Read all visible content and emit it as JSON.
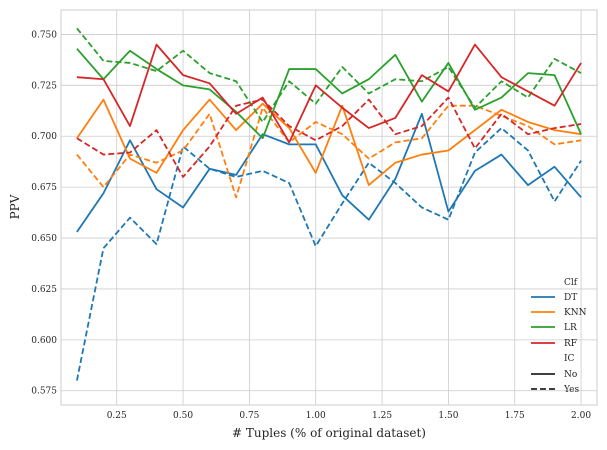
{
  "chart_data": {
    "type": "line",
    "xlabel": "# Tuples (% of original dataset)",
    "ylabel": "PPV",
    "xlim": [
      0.04,
      2.06
    ],
    "ylim": [
      0.568,
      0.762
    ],
    "xticks": [
      0.25,
      0.5,
      0.75,
      1.0,
      1.25,
      1.5,
      1.75,
      2.0
    ],
    "xtick_labels": [
      "0.25",
      "0.50",
      "0.75",
      "1.00",
      "1.25",
      "1.50",
      "1.75",
      "2.00"
    ],
    "yticks": [
      0.575,
      0.6,
      0.625,
      0.65,
      0.675,
      0.7,
      0.725,
      0.75
    ],
    "ytick_labels": [
      "0.575",
      "0.600",
      "0.625",
      "0.650",
      "0.675",
      "0.700",
      "0.725",
      "0.750"
    ],
    "grid": true,
    "legend_placement": "bottom-right",
    "legend": {
      "clf_title": "Clf",
      "clf_entries": [
        {
          "name": "DT",
          "color": "#1f77b4"
        },
        {
          "name": "KNN",
          "color": "#ff7f0e"
        },
        {
          "name": "LR",
          "color": "#2ca02c"
        },
        {
          "name": "RF",
          "color": "#d62728"
        }
      ],
      "ic_title": "IC",
      "ic_entries": [
        {
          "name": "No",
          "style": "solid"
        },
        {
          "name": "Yes",
          "style": "dashed"
        }
      ]
    },
    "x": [
      0.1,
      0.2,
      0.3,
      0.4,
      0.5,
      0.6,
      0.7,
      0.8,
      0.9,
      1.0,
      1.1,
      1.2,
      1.3,
      1.4,
      1.5,
      1.6,
      1.7,
      1.8,
      1.9,
      2.0
    ],
    "series": [
      {
        "clf": "DT",
        "ic": "No",
        "color": "#1f77b4",
        "dash": false,
        "values": [
          0.653,
          0.672,
          0.698,
          0.674,
          0.665,
          0.684,
          0.681,
          0.701,
          0.696,
          0.696,
          0.671,
          0.659,
          0.679,
          0.711,
          0.663,
          0.683,
          0.691,
          0.676,
          0.685,
          0.67
        ]
      },
      {
        "clf": "DT",
        "ic": "Yes",
        "color": "#1f77b4",
        "dash": true,
        "values": [
          0.58,
          0.645,
          0.66,
          0.647,
          0.695,
          0.684,
          0.68,
          0.683,
          0.677,
          0.646,
          0.667,
          0.687,
          0.677,
          0.665,
          0.659,
          0.692,
          0.704,
          0.693,
          0.668,
          0.688
        ]
      },
      {
        "clf": "KNN",
        "ic": "No",
        "color": "#ff7f0e",
        "dash": false,
        "values": [
          0.699,
          0.718,
          0.689,
          0.682,
          0.703,
          0.718,
          0.703,
          0.716,
          0.704,
          0.682,
          0.715,
          0.676,
          0.687,
          0.691,
          0.693,
          0.703,
          0.713,
          0.707,
          0.703,
          0.701
        ]
      },
      {
        "clf": "KNN",
        "ic": "Yes",
        "color": "#ff7f0e",
        "dash": true,
        "values": [
          0.691,
          0.675,
          0.691,
          0.687,
          0.693,
          0.711,
          0.67,
          0.714,
          0.697,
          0.707,
          0.701,
          0.689,
          0.697,
          0.699,
          0.715,
          0.715,
          0.71,
          0.705,
          0.696,
          0.698
        ]
      },
      {
        "clf": "LR",
        "ic": "No",
        "color": "#2ca02c",
        "dash": false,
        "values": [
          0.743,
          0.728,
          0.742,
          0.733,
          0.725,
          0.723,
          0.712,
          0.699,
          0.733,
          0.733,
          0.721,
          0.728,
          0.74,
          0.717,
          0.736,
          0.713,
          0.719,
          0.731,
          0.73,
          0.701
        ]
      },
      {
        "clf": "LR",
        "ic": "Yes",
        "color": "#2ca02c",
        "dash": true,
        "values": [
          0.753,
          0.737,
          0.736,
          0.732,
          0.742,
          0.731,
          0.727,
          0.707,
          0.727,
          0.716,
          0.734,
          0.721,
          0.728,
          0.727,
          0.734,
          0.714,
          0.727,
          0.719,
          0.738,
          0.731
        ]
      },
      {
        "clf": "RF",
        "ic": "No",
        "color": "#d62728",
        "dash": false,
        "values": [
          0.729,
          0.728,
          0.705,
          0.745,
          0.73,
          0.726,
          0.711,
          0.719,
          0.697,
          0.725,
          0.714,
          0.704,
          0.709,
          0.73,
          0.722,
          0.745,
          0.729,
          0.722,
          0.715,
          0.736
        ]
      },
      {
        "clf": "RF",
        "ic": "Yes",
        "color": "#d62728",
        "dash": true,
        "values": [
          0.699,
          0.691,
          0.692,
          0.703,
          0.68,
          0.695,
          0.715,
          0.718,
          0.705,
          0.698,
          0.705,
          0.718,
          0.701,
          0.705,
          0.719,
          0.694,
          0.711,
          0.701,
          0.704,
          0.706
        ]
      }
    ]
  }
}
